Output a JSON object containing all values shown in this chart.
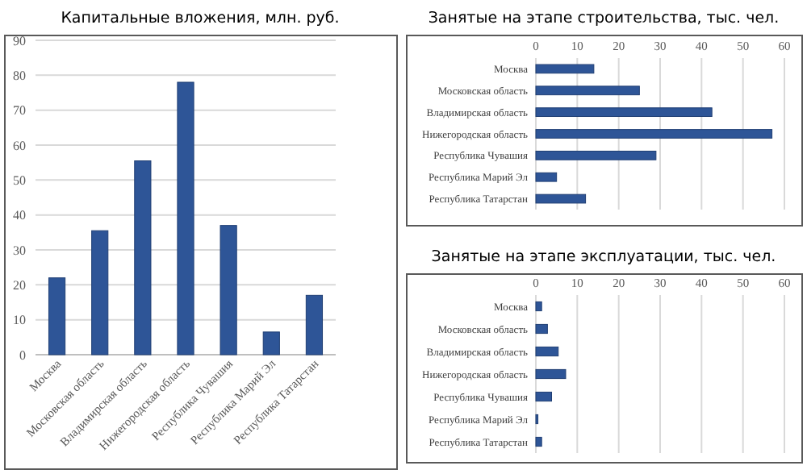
{
  "chart_data": [
    {
      "type": "bar",
      "title": "Капитальные вложения, млн. руб.",
      "categories": [
        "Москва",
        "Московская область",
        "Владимирская область",
        "Нижегородская область",
        "Республика Чувашия",
        "Республика Марий Эл",
        "Республика Татарстан"
      ],
      "values": [
        22,
        35.5,
        55.5,
        78,
        37,
        6.5,
        17
      ],
      "color": "#2e5597",
      "ylim": [
        0,
        90
      ],
      "yticks": [
        0,
        10,
        20,
        30,
        40,
        50,
        60,
        70,
        80,
        90
      ],
      "grid": "y"
    },
    {
      "type": "bar",
      "orientation": "horizontal",
      "title": "Занятые на этапе строительства, тыс. чел.",
      "categories": [
        "Москва",
        "Московская область",
        "Владимирская область",
        "Нижегородская область",
        "Республика Чувашия",
        "Республика Марий Эл",
        "Республика Татарстан"
      ],
      "values": [
        14,
        25,
        42.5,
        57,
        29,
        5,
        12
      ],
      "color": "#2e5597",
      "xlim": [
        0,
        60
      ],
      "xticks": [
        0,
        10,
        20,
        30,
        40,
        50,
        60
      ],
      "grid": "x"
    },
    {
      "type": "bar",
      "orientation": "horizontal",
      "title": "Занятые на этапе эксплуатации, тыс. чел.",
      "categories": [
        "Москва",
        "Московская область",
        "Владимирская область",
        "Нижегородская область",
        "Республика Чувашия",
        "Республика Марий Эл",
        "Республика Татарстан"
      ],
      "values": [
        1.4,
        2.8,
        5.4,
        7.2,
        3.8,
        0.5,
        1.4
      ],
      "color": "#2e5597",
      "xlim": [
        0,
        60
      ],
      "xticks": [
        0,
        10,
        20,
        30,
        40,
        50,
        60
      ],
      "grid": "x"
    }
  ]
}
